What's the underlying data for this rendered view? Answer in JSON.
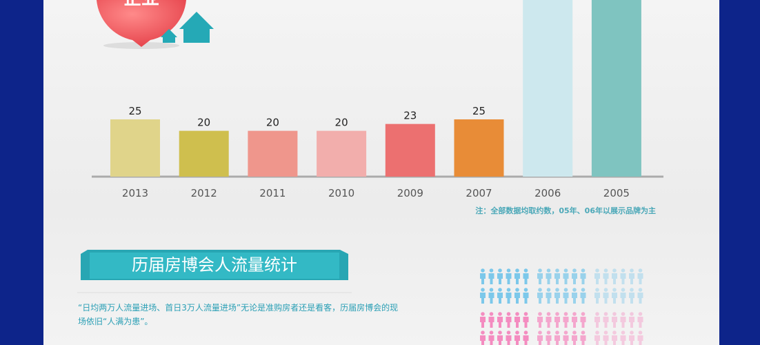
{
  "header": {
    "badge": "企业"
  },
  "chart_data": {
    "type": "bar",
    "categories": [
      "2013",
      "2012",
      "2011",
      "2010",
      "2009",
      "2007",
      "2006",
      "2005"
    ],
    "values": [
      25,
      20,
      20,
      20,
      23,
      25,
      80,
      80
    ],
    "value_labels": [
      "25",
      "20",
      "20",
      "20",
      "23",
      "25",
      null,
      null
    ],
    "colors": [
      "#e0d48a",
      "#cfbf4e",
      "#ef968c",
      "#f2aeac",
      "#ec7070",
      "#e88c37",
      "#cde8ee",
      "#7fc4c0"
    ],
    "note": "注：全部数据均取约数，05年、06年以展示品牌为主"
  },
  "section": {
    "title": "历届房博会人流量统计",
    "text": "“日均两万人流量进场、首日3万人流量进场”无论是准购房者还是看客，历届房博会的现场依旧“人满为患”。"
  }
}
